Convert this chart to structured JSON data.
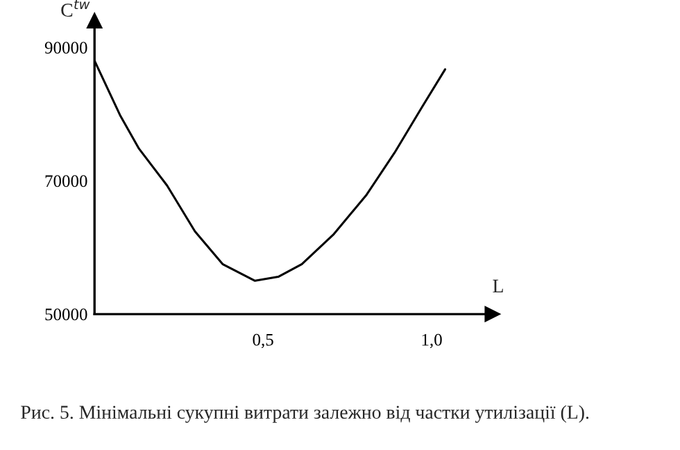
{
  "chart_data": {
    "type": "line",
    "xlabel": "L",
    "ylabel": "C$^{tw}$",
    "annotations": [
      "Рис. 5. Мінімальні сукупні витрати залежно від частки утилізації (L)."
    ],
    "x": [
      0,
      0.077,
      0.132,
      0.215,
      0.298,
      0.38,
      0.476,
      0.545,
      0.615,
      0.71,
      0.807,
      0.89,
      0.972,
      1.04
    ],
    "series": [
      {
        "color": "#000000",
        "values": [
          88000,
          79700,
          74800,
          69300,
          62400,
          57500,
          55000,
          55600,
          57500,
          62000,
          67900,
          74200,
          81100,
          86700
        ]
      }
    ],
    "xlim": [
      0,
      1.18
    ],
    "ylim": [
      50000,
      94000
    ],
    "xticks": [
      {
        "value": 0.5,
        "label": "0,5"
      },
      {
        "value": 1.0,
        "label": "1,0"
      }
    ],
    "yticks": [
      50000,
      70000,
      90000
    ],
    "grid": false,
    "legend": false,
    "marker": "none",
    "line_style": "solid"
  }
}
